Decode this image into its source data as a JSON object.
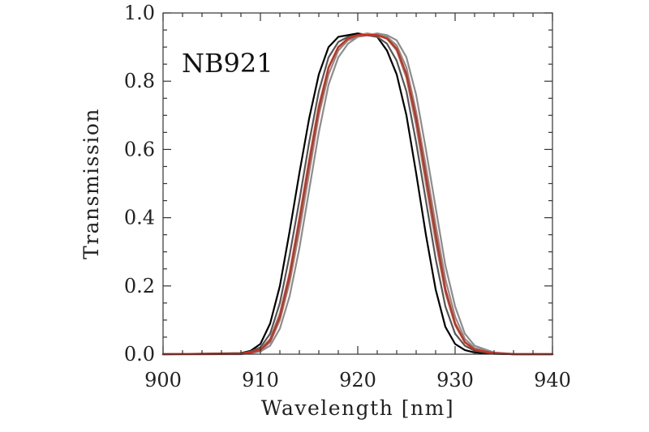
{
  "chart_data": {
    "type": "line",
    "title": "",
    "annotation": "NB921",
    "xlabel": "Wavelength [nm]",
    "ylabel": "Transmission",
    "xlim": [
      900,
      940
    ],
    "ylim": [
      0.0,
      1.0
    ],
    "xticks": [
      900,
      910,
      920,
      930,
      940
    ],
    "xtick_labels": [
      "900",
      "910",
      "920",
      "930",
      "940"
    ],
    "yticks": [
      0.0,
      0.2,
      0.4,
      0.6,
      0.8,
      1.0
    ],
    "ytick_labels": [
      "0.0",
      "0.2",
      "0.4",
      "0.6",
      "0.8",
      "1.0"
    ],
    "grid": false,
    "legend": "none",
    "colors": {
      "black": "#000000",
      "gray": "#8c8c8c",
      "dark_gray": "#555555",
      "red": "#c8321e"
    },
    "series": [
      {
        "color": "#000000",
        "x": [
          900,
          908,
          909,
          910,
          911,
          912,
          913,
          914,
          915,
          916,
          917,
          918,
          919,
          920,
          921,
          922,
          923,
          924,
          925,
          926,
          927,
          928,
          929,
          930,
          931,
          932,
          934,
          936,
          940
        ],
        "y": [
          0.0,
          0.003,
          0.01,
          0.03,
          0.09,
          0.2,
          0.36,
          0.53,
          0.69,
          0.82,
          0.9,
          0.93,
          0.935,
          0.94,
          0.935,
          0.93,
          0.89,
          0.82,
          0.7,
          0.53,
          0.35,
          0.19,
          0.08,
          0.03,
          0.012,
          0.005,
          0.001,
          0.0,
          0.0
        ]
      },
      {
        "color": "#555555",
        "x": [
          900,
          908,
          909,
          910,
          911,
          912,
          913,
          914,
          915,
          916,
          917,
          918,
          919,
          920,
          921,
          922,
          923,
          924,
          925,
          926,
          927,
          928,
          929,
          930,
          931,
          932,
          934,
          936,
          940
        ],
        "y": [
          0.0,
          0.002,
          0.008,
          0.02,
          0.06,
          0.15,
          0.29,
          0.45,
          0.62,
          0.77,
          0.87,
          0.915,
          0.93,
          0.935,
          0.935,
          0.93,
          0.91,
          0.86,
          0.77,
          0.62,
          0.45,
          0.28,
          0.14,
          0.06,
          0.025,
          0.01,
          0.002,
          0.0,
          0.0
        ]
      },
      {
        "color": "#8c8c8c",
        "x": [
          900,
          908,
          909,
          910,
          911,
          912,
          913,
          914,
          915,
          916,
          917,
          918,
          919,
          920,
          921,
          922,
          923,
          924,
          925,
          926,
          927,
          928,
          929,
          930,
          931,
          932,
          934,
          936,
          940
        ],
        "y": [
          0.0,
          0.001,
          0.005,
          0.014,
          0.045,
          0.12,
          0.24,
          0.4,
          0.57,
          0.73,
          0.84,
          0.9,
          0.925,
          0.935,
          0.94,
          0.935,
          0.925,
          0.89,
          0.81,
          0.67,
          0.5,
          0.33,
          0.18,
          0.085,
          0.035,
          0.014,
          0.003,
          0.0,
          0.0
        ]
      },
      {
        "color": "#8c8c8c",
        "x": [
          900,
          908,
          909,
          910,
          911,
          912,
          913,
          914,
          915,
          916,
          917,
          918,
          919,
          920,
          921,
          922,
          923,
          924,
          925,
          926,
          927,
          928,
          929,
          930,
          931,
          932,
          934,
          936,
          940
        ],
        "y": [
          0.0,
          0.001,
          0.004,
          0.011,
          0.035,
          0.1,
          0.21,
          0.36,
          0.53,
          0.7,
          0.82,
          0.89,
          0.92,
          0.93,
          0.935,
          0.935,
          0.93,
          0.905,
          0.84,
          0.71,
          0.55,
          0.38,
          0.22,
          0.11,
          0.045,
          0.018,
          0.004,
          0.0,
          0.0
        ]
      },
      {
        "color": "#8c8c8c",
        "x": [
          900,
          908,
          909,
          910,
          911,
          912,
          913,
          914,
          915,
          916,
          917,
          918,
          919,
          920,
          921,
          922,
          923,
          924,
          925,
          926,
          927,
          928,
          929,
          930,
          931,
          932,
          934,
          936,
          940
        ],
        "y": [
          0.0,
          0.0,
          0.003,
          0.008,
          0.025,
          0.075,
          0.17,
          0.31,
          0.48,
          0.65,
          0.79,
          0.87,
          0.91,
          0.93,
          0.935,
          0.94,
          0.935,
          0.92,
          0.87,
          0.76,
          0.6,
          0.43,
          0.26,
          0.14,
          0.06,
          0.025,
          0.005,
          0.001,
          0.0
        ]
      },
      {
        "color": "#c8321e",
        "x": [
          900,
          908,
          909,
          910,
          911,
          912,
          913,
          914,
          915,
          916,
          917,
          918,
          919,
          920,
          921,
          922,
          923,
          924,
          925,
          926,
          927,
          928,
          929,
          930,
          931,
          932,
          934,
          936,
          940
        ],
        "y": [
          0.0,
          0.001,
          0.005,
          0.013,
          0.04,
          0.11,
          0.23,
          0.39,
          0.56,
          0.72,
          0.84,
          0.9,
          0.925,
          0.935,
          0.935,
          0.935,
          0.925,
          0.895,
          0.82,
          0.69,
          0.52,
          0.35,
          0.19,
          0.09,
          0.035,
          0.013,
          0.003,
          0.0,
          0.0
        ]
      }
    ]
  }
}
